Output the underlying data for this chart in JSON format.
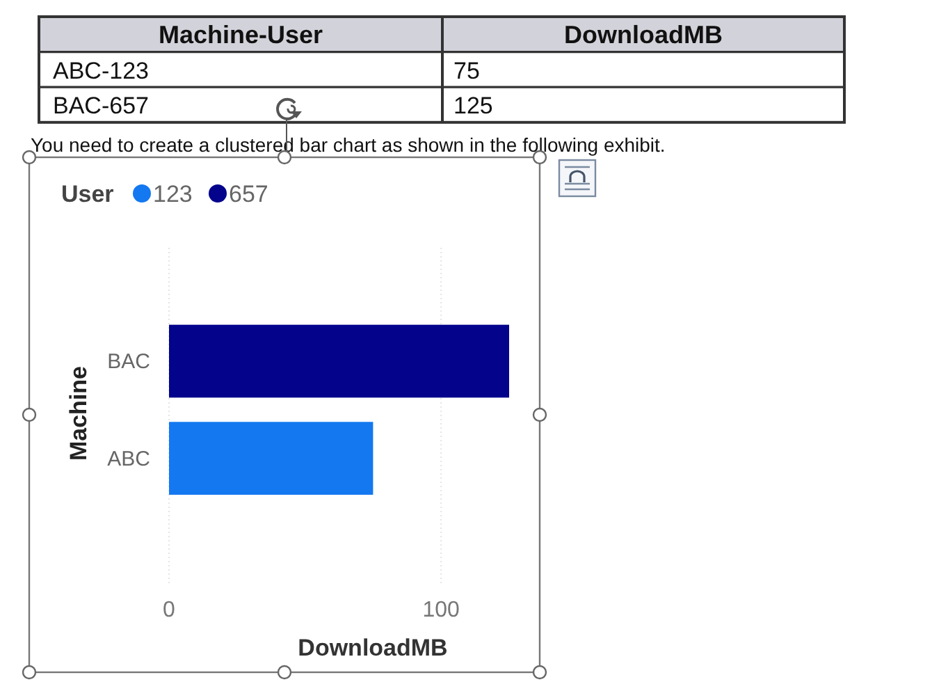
{
  "chart_data": {
    "type": "bar",
    "orientation": "horizontal",
    "categories": [
      "BAC",
      "ABC"
    ],
    "series": [
      {
        "name": "123",
        "color": "#1478f0",
        "values": [
          null,
          75
        ]
      },
      {
        "name": "657",
        "color": "#03038c",
        "values": [
          125,
          null
        ]
      }
    ],
    "xlabel": "DownloadMB",
    "ylabel": "Machine",
    "legend_title": "User",
    "legend": "top left",
    "xlim": [
      0,
      125
    ],
    "xticks": [
      0,
      100
    ],
    "grid": "x",
    "annotations": [
      "Machine-User",
      "DownloadMB",
      "ABC-123",
      "75",
      "BAC-657",
      "125",
      "You need to create a clustered bar chart as shown in the following exhibit."
    ]
  }
}
